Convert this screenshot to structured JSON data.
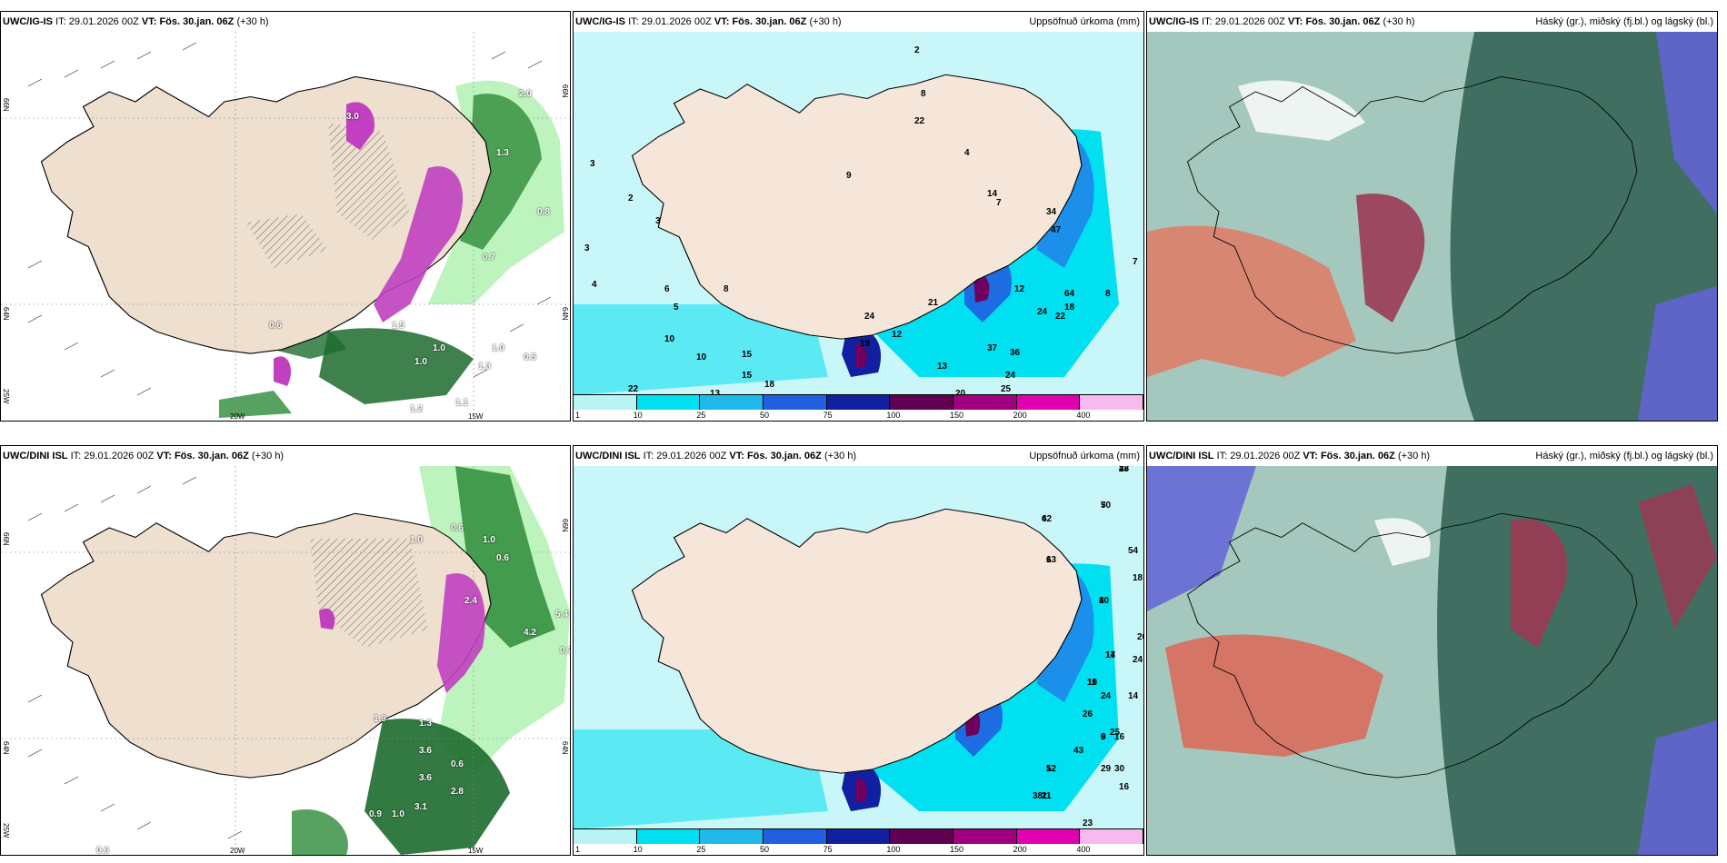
{
  "panels": [
    {
      "id": "tl",
      "model": "UWC/IG-IS",
      "it_label": "IT:",
      "it_value": "29.01.2026 00Z",
      "vt_label": "VT: Fös. 30.jan. 06Z",
      "lead": "(+30 h)",
      "right_title": "",
      "grid_labels": [
        "20W",
        "15W",
        "66N",
        "64N",
        "25W",
        "66N",
        "64N"
      ],
      "values": [
        "3.0",
        "2.0",
        "1.3",
        "0.8",
        "1.5",
        "1.0",
        "0.5",
        "1.3",
        "1.0",
        "1.2",
        "1.1",
        "0.6",
        "1.0",
        "0.6",
        "0.7",
        "1.0"
      ]
    },
    {
      "id": "tm",
      "model": "UWC/IG-IS",
      "it_label": "IT:",
      "it_value": "29.01.2026 00Z",
      "vt_label": "VT: Fös. 30.jan. 06Z",
      "lead": "(+30 h)",
      "right_title": "Uppsöfnuð úrkoma (mm)",
      "values": [
        "3",
        "4",
        "3",
        "5",
        "2",
        "3",
        "6",
        "10",
        "8",
        "13",
        "22",
        "11",
        "15",
        "18",
        "10",
        "15",
        "9",
        "24",
        "19",
        "12",
        "21",
        "13",
        "20",
        "17",
        "37",
        "36",
        "24",
        "25",
        "18",
        "15",
        "17",
        "2",
        "8",
        "22",
        "4",
        "7",
        "14",
        "34",
        "47",
        "64",
        "12",
        "24",
        "22",
        "18",
        "8",
        "7"
      ]
    },
    {
      "id": "tr",
      "model": "UWC/IG-IS",
      "it_label": "IT:",
      "it_value": "29.01.2026 00Z",
      "vt_label": "VT: Fös. 30.jan. 06Z",
      "lead": "(+30 h)",
      "right_title": "Háský (gr.), miðský (fj.bl.) og lágský (bl.)"
    },
    {
      "id": "bl",
      "model": "UWC/DINI ISL",
      "it_label": "IT:",
      "it_value": "29.01.2026 00Z",
      "vt_label": "VT: Fös. 30.jan. 06Z",
      "lead": "(+30 h)",
      "right_title": "",
      "grid_labels": [
        "20W",
        "15W",
        "66N",
        "64N",
        "25W",
        "66N",
        "64N"
      ],
      "values": [
        "1.0",
        "0.6",
        "1.0",
        "0.6",
        "2.4",
        "4.2",
        "5.4",
        "0.7",
        "1.3",
        "1.9",
        "3.6",
        "0.6",
        "3.6",
        "2.8",
        "3.1",
        "1.0",
        "0.9",
        "0.6"
      ]
    },
    {
      "id": "bm",
      "model": "UWC/DINI ISL",
      "it_label": "IT:",
      "it_value": "29.01.2026 00Z",
      "vt_label": "VT: Fös. 30.jan. 06Z",
      "lead": "(+30 h)",
      "right_title": "Uppsöfnuð úrkoma (mm)",
      "values": [
        "2",
        "5",
        "4",
        "6",
        "8",
        "17",
        "10",
        "9",
        "12",
        "11",
        "16",
        "13",
        "23",
        "25",
        "16",
        "30",
        "38",
        "29",
        "43",
        "25",
        "26",
        "24",
        "14",
        "24",
        "26",
        "18",
        "54",
        "28",
        "47",
        "70",
        "62",
        "13",
        "10",
        "14",
        "11",
        "6",
        "5",
        "2"
      ]
    },
    {
      "id": "br",
      "model": "UWC/DINI ISL",
      "it_label": "IT:",
      "it_value": "29.01.2026 00Z",
      "vt_label": "VT: Fös. 30.jan. 06Z",
      "lead": "(+30 h)",
      "right_title": "Háský (gr.), miðský (fj.bl.) og lágský (bl.)"
    }
  ],
  "colorbar": {
    "ticks": [
      "1",
      "10",
      "25",
      "50",
      "75",
      "100",
      "150",
      "200",
      "400"
    ],
    "colors": [
      "#b8f4f6",
      "#00e0f0",
      "#20b8e8",
      "#2060e0",
      "#1020a0",
      "#600050",
      "#a00080",
      "#e000b0",
      "#f8b8f0"
    ]
  }
}
